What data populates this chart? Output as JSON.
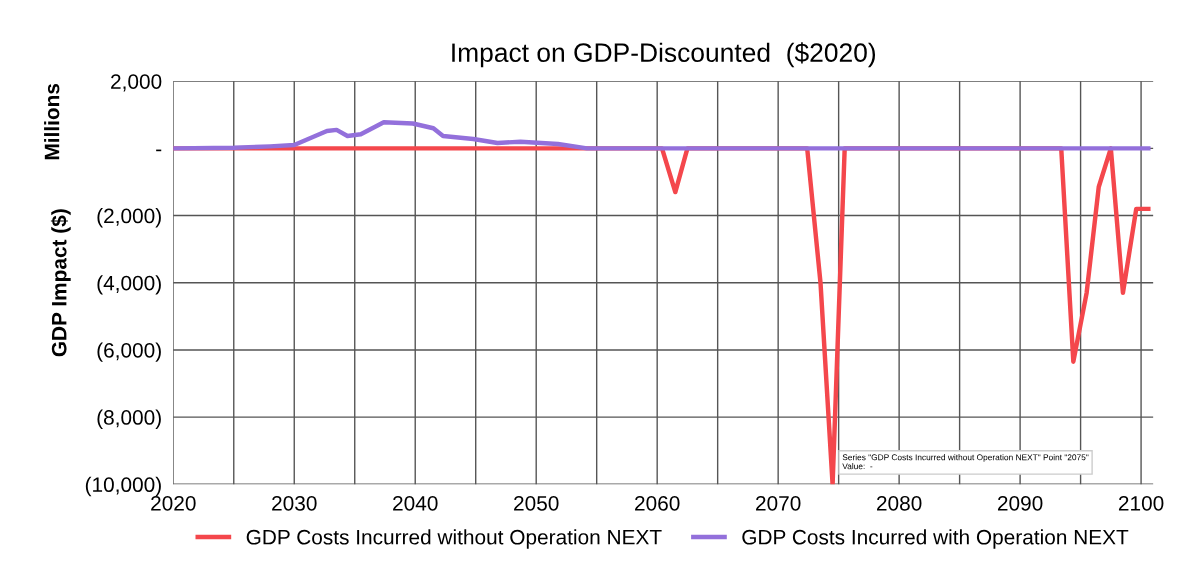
{
  "chart_data": {
    "type": "line",
    "title": "Impact on GDP-Discounted  ($2020)",
    "ylabel": "GDP Impact ($)",
    "annotations": [
      "Millions",
      "Series \"GDP Costs Incurred without Operation NEXT\" Point \"2075\"\nValue:  -"
    ],
    "series": [
      {
        "name": "GDP Costs Incurred without Operation NEXT",
        "color": "#f4474c",
        "x": [
          2020,
          2060.4,
          2061.5,
          2062.5,
          2072.4,
          2073.5,
          2074.5,
          2075.5,
          2093.4,
          2094.4,
          2095.5,
          2096.5,
          2097.5,
          2098.5,
          2099.6,
          2100.6
        ],
        "values": [
          0,
          0,
          -1300,
          0,
          0,
          -4000,
          -10000,
          0,
          0,
          -6350,
          -4300,
          -1150,
          0,
          -4300,
          -1800,
          -1800
        ]
      },
      {
        "name": "GDP Costs Incurred with Operation NEXT",
        "color": "#9370db",
        "x": [
          2020,
          2025,
          2028,
          2030,
          2032.7,
          2033.5,
          2034.4,
          2035.5,
          2037.4,
          2039.8,
          2041.5,
          2042.3,
          2044.8,
          2046.8,
          2048.7,
          2051.8,
          2054.2,
          2100.6
        ],
        "values": [
          0,
          20,
          60,
          100,
          520,
          550,
          370,
          420,
          780,
          740,
          600,
          370,
          280,
          160,
          200,
          130,
          0,
          0
        ]
      }
    ],
    "xlim": [
      2020,
      2101
    ],
    "xticks": [
      2020,
      {
        "value": 2025,
        "label": null
      },
      2030,
      {
        "value": 2035,
        "label": null
      },
      2040,
      {
        "value": 2045,
        "label": null
      },
      2050,
      {
        "value": 2055,
        "label": null
      },
      2060,
      {
        "value": 2065,
        "label": null
      },
      2070,
      {
        "value": 2075,
        "label": null
      },
      2080,
      {
        "value": 2085,
        "label": null
      },
      2090,
      {
        "value": 2095,
        "label": null
      },
      2100
    ],
    "ylim": [
      -10000,
      2000
    ],
    "yticks": [
      {
        "value": 2000,
        "label": "2,000"
      },
      {
        "value": 0,
        "label": "-"
      },
      {
        "value": -2000,
        "label": "(2,000)"
      },
      {
        "value": -4000,
        "label": "(4,000)"
      },
      {
        "value": -6000,
        "label": "(6,000)"
      },
      {
        "value": -8000,
        "label": "(8,000)"
      },
      {
        "value": -10000,
        "label": "(10,000)"
      }
    ],
    "grid": true,
    "legend": "bottom",
    "marker": "none",
    "line_style": "solid"
  }
}
